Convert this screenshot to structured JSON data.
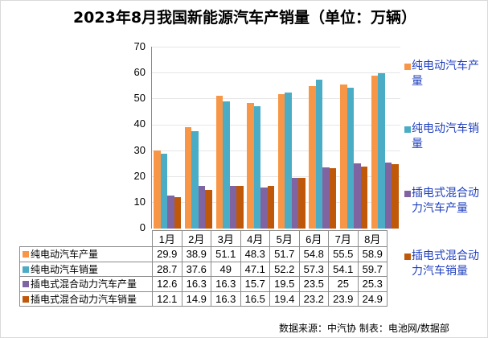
{
  "title": "2023年8月我国新能源汽车产销量（单位：万辆）",
  "source": "数据来源：中汽协 制表：电池网/数据部",
  "colors": {
    "bev_production": "#F79646",
    "bev_sales": "#4BACC6",
    "phev_production": "#8064A2",
    "phev_sales": "#C0580A",
    "legend_text": "#1F3FBF",
    "grid": "#E6E6E6"
  },
  "y_axis": {
    "ticks": [
      "70",
      "60",
      "50",
      "40",
      "30",
      "20",
      "10",
      "0"
    ]
  },
  "table": {
    "months": [
      "1月",
      "2月",
      "3月",
      "4月",
      "5月",
      "6月",
      "7月",
      "8月"
    ],
    "rows": [
      {
        "label": "纯电动汽车产量",
        "values": [
          "29.9",
          "38.9",
          "51.1",
          "48.3",
          "51.7",
          "54.8",
          "55.5",
          "58.9"
        ]
      },
      {
        "label": "纯电动汽车销量",
        "values": [
          "28.7",
          "37.6",
          "49",
          "47.1",
          "52.2",
          "57.3",
          "54.1",
          "59.7"
        ]
      },
      {
        "label": "插电式混合动力汽车产量",
        "values": [
          "12.6",
          "16.3",
          "16.3",
          "15.7",
          "19.5",
          "23.5",
          "25",
          "25.3"
        ]
      },
      {
        "label": "插电式混合动力汽车销量",
        "values": [
          "12.1",
          "14.9",
          "16.3",
          "16.5",
          "19.4",
          "23.2",
          "23.9",
          "24.9"
        ]
      }
    ]
  },
  "legend": [
    {
      "line1": "纯电动汽车产",
      "line2": "量"
    },
    {
      "line1": "纯电动汽车销",
      "line2": "量"
    },
    {
      "line1": "插电式混合动",
      "line2": "力汽车产量"
    },
    {
      "line1": "插电式混合动",
      "line2": "力汽车销量"
    }
  ],
  "chart_data": {
    "type": "bar",
    "title": "2023年8月我国新能源汽车产销量（单位：万辆）",
    "xlabel": "",
    "ylabel": "万辆",
    "ylim": [
      0,
      70
    ],
    "yticks": [
      0,
      10,
      20,
      30,
      40,
      50,
      60,
      70
    ],
    "grid": true,
    "legend_position": "right",
    "categories": [
      "1月",
      "2月",
      "3月",
      "4月",
      "5月",
      "6月",
      "7月",
      "8月"
    ],
    "series": [
      {
        "name": "纯电动汽车产量",
        "color": "#F79646",
        "values": [
          29.9,
          38.9,
          51.1,
          48.3,
          51.7,
          54.8,
          55.5,
          58.9
        ]
      },
      {
        "name": "纯电动汽车销量",
        "color": "#4BACC6",
        "values": [
          28.7,
          37.6,
          49,
          47.1,
          52.2,
          57.3,
          54.1,
          59.7
        ]
      },
      {
        "name": "插电式混合动力汽车产量",
        "color": "#8064A2",
        "values": [
          12.6,
          16.3,
          16.3,
          15.7,
          19.5,
          23.5,
          25,
          25.3
        ]
      },
      {
        "name": "插电式混合动力汽车销量",
        "color": "#C0580A",
        "values": [
          12.1,
          14.9,
          16.3,
          16.5,
          19.4,
          23.2,
          23.9,
          24.9
        ]
      }
    ],
    "data_table": true,
    "source": "数据来源：中汽协 制表：电池网/数据部"
  }
}
